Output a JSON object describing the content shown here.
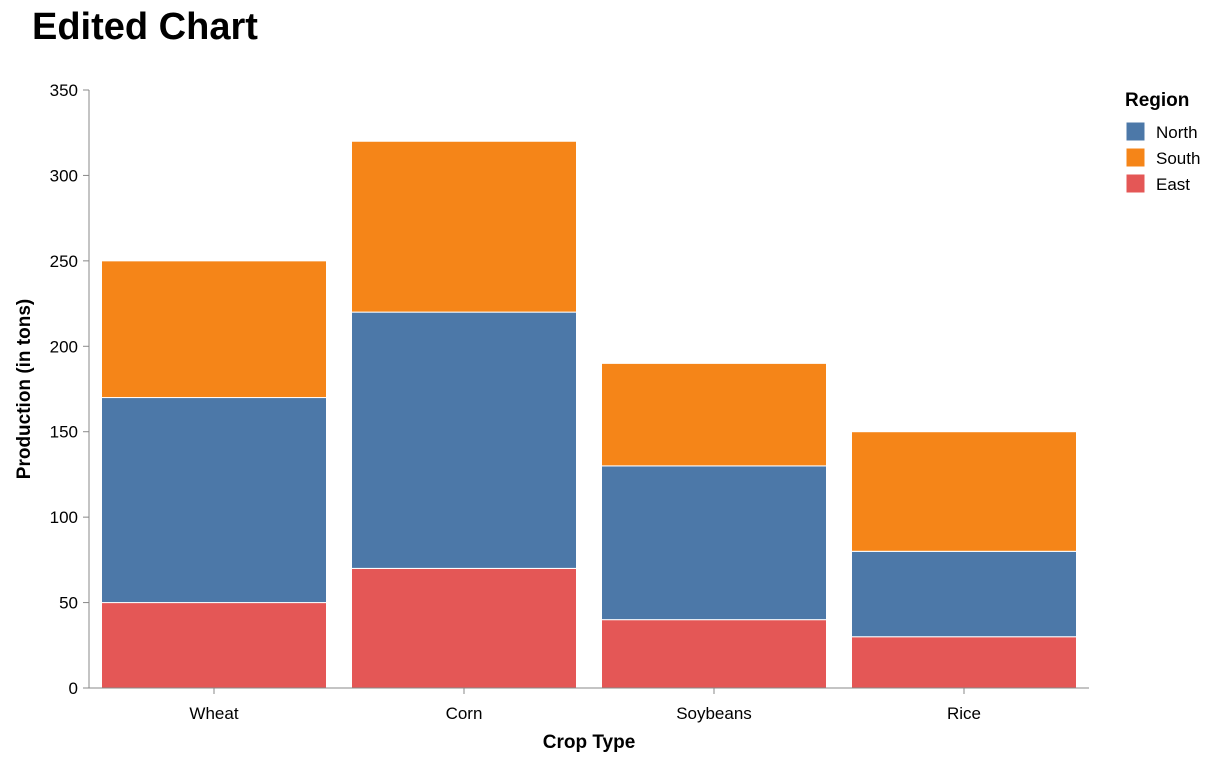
{
  "chart_data": {
    "type": "bar",
    "stacked": true,
    "title": "Edited Chart",
    "xlabel": "Crop Type",
    "ylabel": "Production (in tons)",
    "ylim": [
      0,
      350
    ],
    "yticks": [
      0,
      50,
      100,
      150,
      200,
      250,
      300,
      350
    ],
    "categories": [
      "Wheat",
      "Corn",
      "Soybeans",
      "Rice"
    ],
    "legend": {
      "title": "Region",
      "placement": "top-right"
    },
    "series": [
      {
        "name": "East",
        "color": "#e45756",
        "values": [
          50,
          70,
          40,
          30
        ]
      },
      {
        "name": "North",
        "color": "#4c78a8",
        "values": [
          120,
          150,
          90,
          50
        ]
      },
      {
        "name": "South",
        "color": "#f58518",
        "values": [
          80,
          100,
          60,
          70
        ]
      }
    ],
    "legend_order": [
      "North",
      "South",
      "East"
    ],
    "grid": false
  }
}
